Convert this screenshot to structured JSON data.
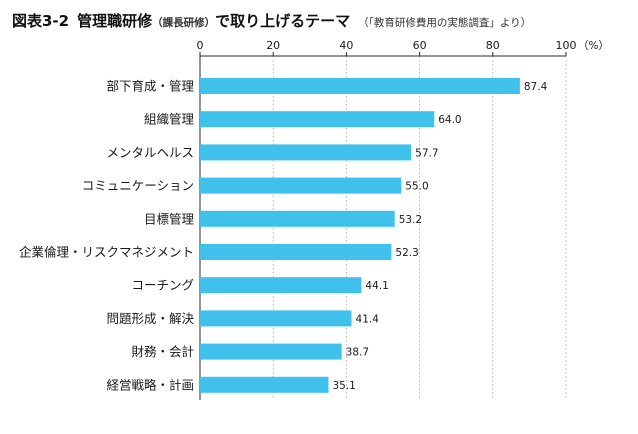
{
  "figure_label": "図表3-2",
  "title_main": "管理職研修",
  "title_sub": "（課長研修）",
  "title_tail": "で取り上げるテーマ",
  "source_note": "（「教育研修費用の実態調査」より）",
  "axis_unit": "（%）",
  "colors": {
    "bar": "#3fc1ec",
    "axis": "#2a2a2a",
    "grid": "#b5b5b5",
    "text": "#1a1a1a"
  },
  "chart_data": {
    "type": "bar",
    "orientation": "horizontal",
    "categories": [
      "部下育成・管理",
      "組織管理",
      "メンタルヘルス",
      "コミュニケーション",
      "目標管理",
      "企業倫理・リスクマネジメント",
      "コーチング",
      "問題形成・解決",
      "財務・会計",
      "経営戦略・計画"
    ],
    "values": [
      87.4,
      64.0,
      57.7,
      55.0,
      53.2,
      52.3,
      44.1,
      41.4,
      38.7,
      35.1
    ],
    "value_labels": [
      "87.4",
      "64.0",
      "57.7",
      "55.0",
      "53.2",
      "52.3",
      "44.1",
      "41.4",
      "38.7",
      "35.1"
    ],
    "xlim": [
      0,
      100
    ],
    "xticks": [
      0,
      20,
      40,
      60,
      80,
      100
    ],
    "xtick_labels": [
      "0",
      "20",
      "40",
      "60",
      "80",
      "100"
    ],
    "xlabel": "（%）",
    "ylabel": "",
    "grid": "vertical dotted",
    "axis_position": "top"
  }
}
